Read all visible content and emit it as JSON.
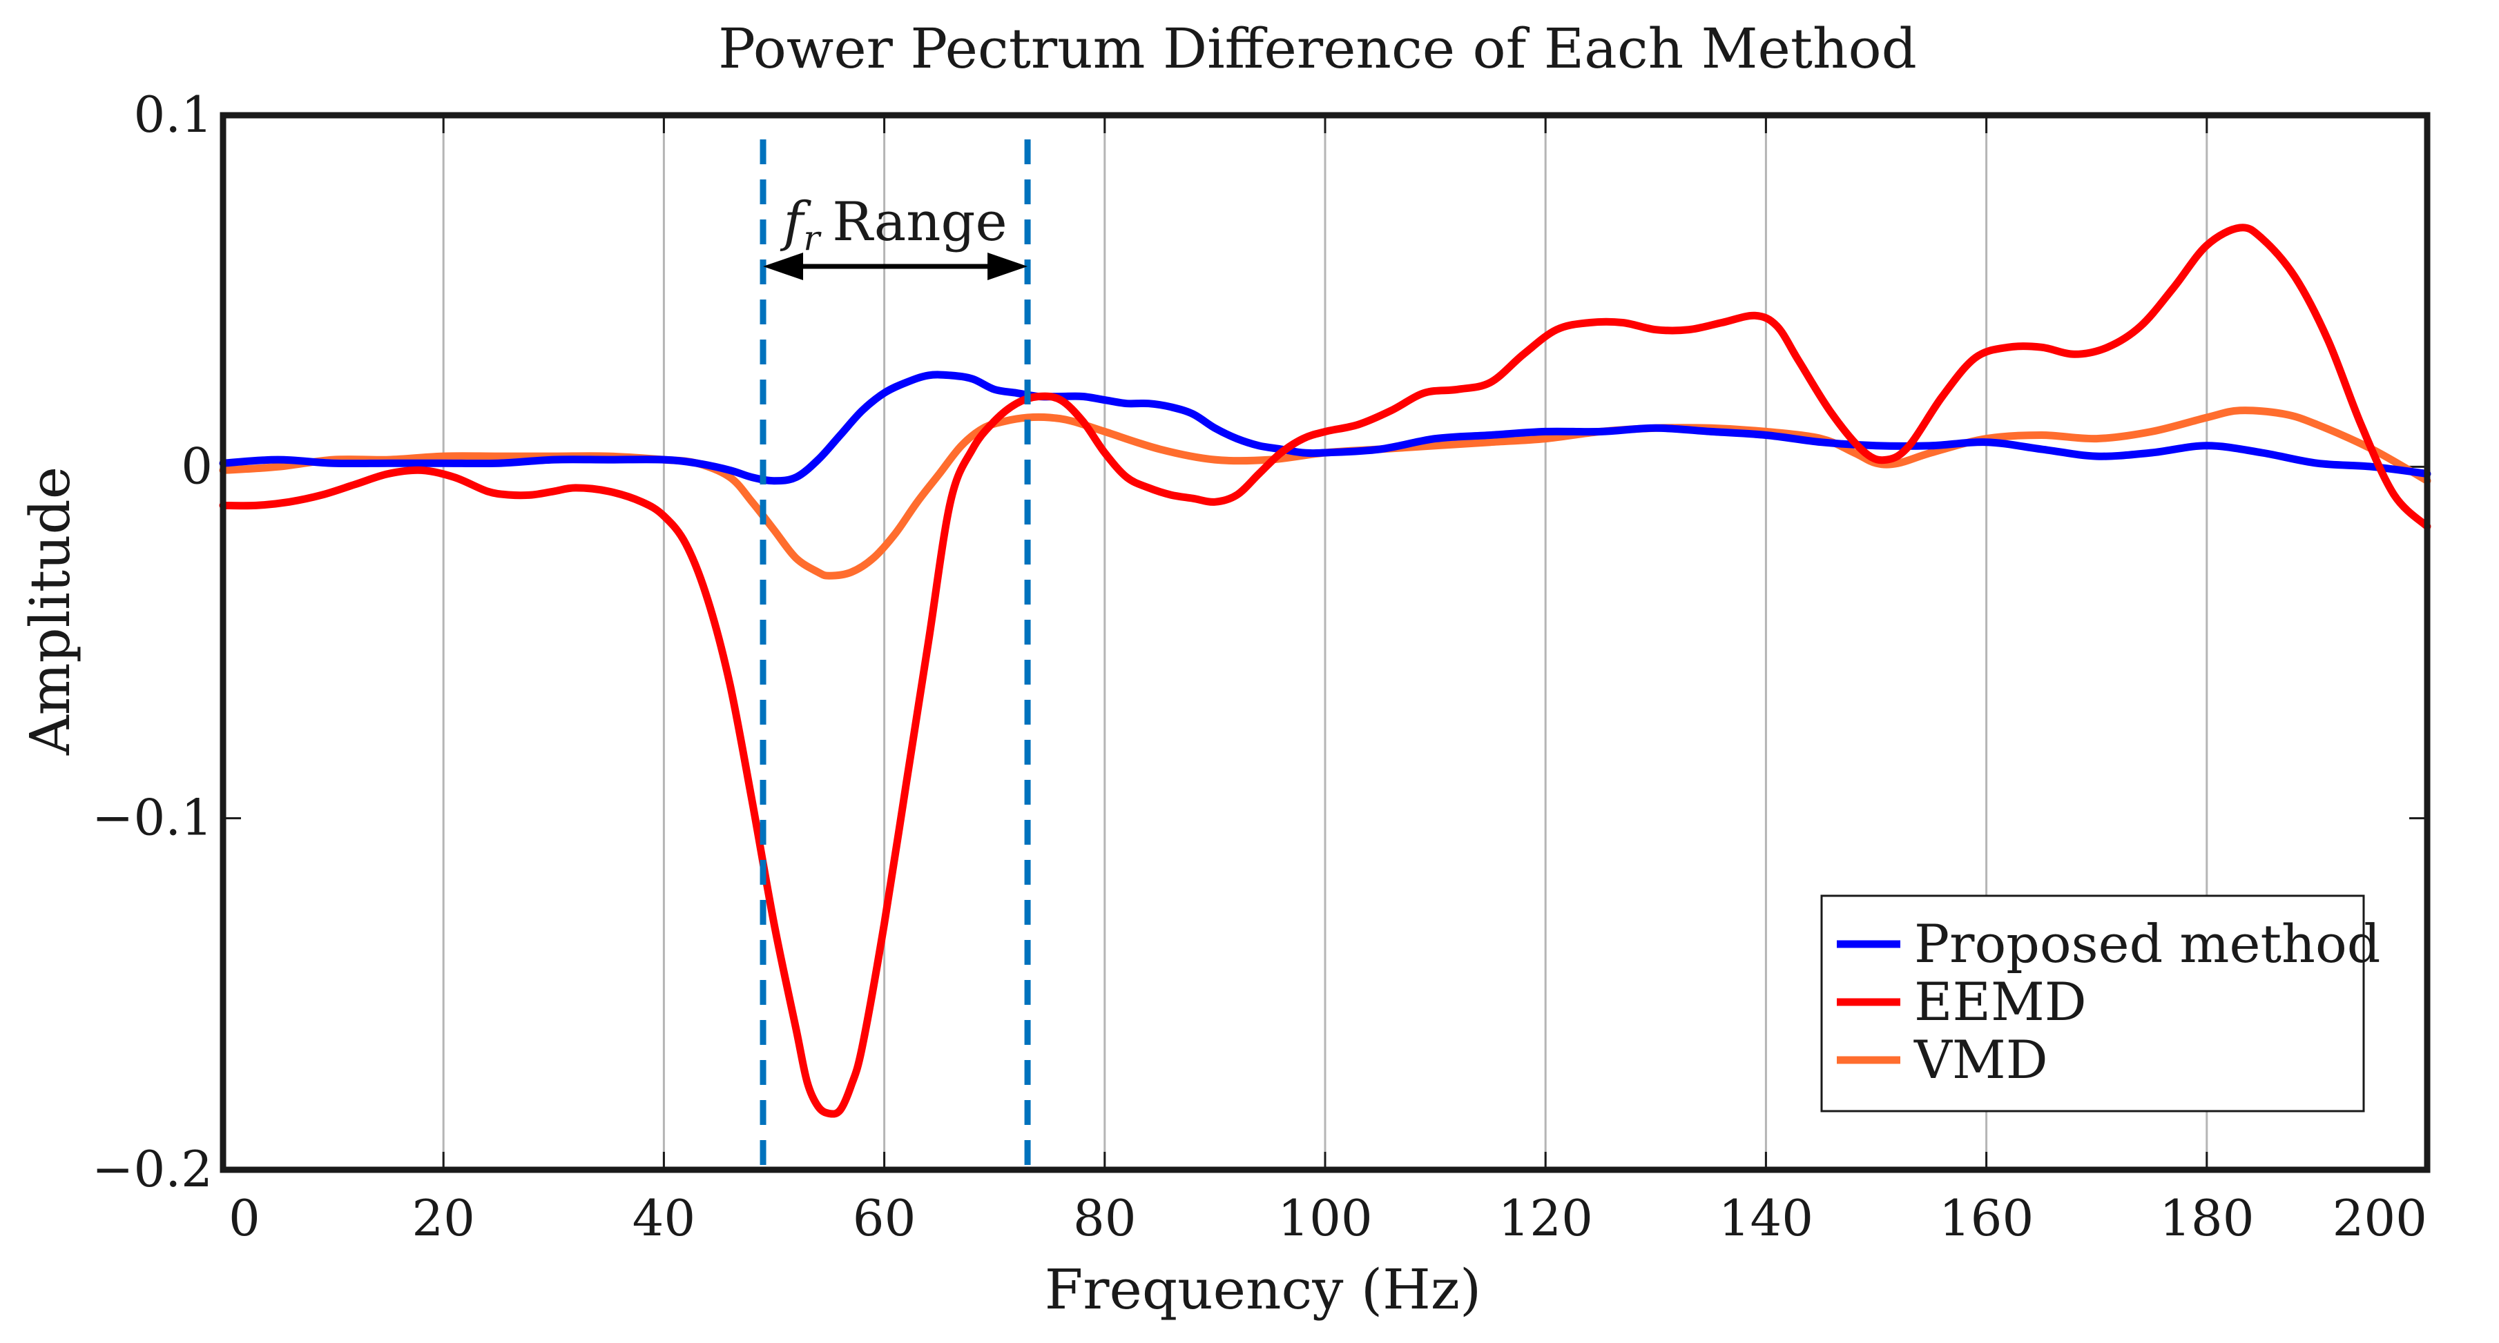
{
  "chart_data": {
    "type": "line",
    "title": "Power Pectrum Difference of Each Method",
    "xlabel": "Frequency (Hz)",
    "ylabel": "Amplitude",
    "xlim": [
      0,
      200
    ],
    "ylim": [
      -0.2,
      0.1
    ],
    "x_ticks": [
      0,
      20,
      40,
      60,
      80,
      100,
      120,
      140,
      160,
      180,
      200
    ],
    "x_tick_labels": [
      "0",
      "20",
      "40",
      "60",
      "80",
      "100",
      "120",
      "140",
      "160",
      "180",
      "200"
    ],
    "y_ticks": [
      -0.2,
      -0.1,
      0,
      0.1
    ],
    "y_tick_labels": [
      "−0.2",
      "−0.1",
      "0",
      "0.1"
    ],
    "grid": "vertical",
    "legend_position": "bottom-right",
    "annotation": {
      "italic": "f",
      "subscript": "r",
      "text": "Range",
      "x_start": 49,
      "x_end": 73,
      "arrow_y": 0.057,
      "color": "#0072BD"
    },
    "series": [
      {
        "name": "Proposed method",
        "color": "#0000FF",
        "x": [
          0,
          5,
          10,
          15,
          20,
          25,
          30,
          35,
          40,
          43,
          46,
          48,
          50,
          52,
          54,
          56,
          58,
          60,
          62,
          64,
          66,
          68,
          70,
          72,
          74,
          76,
          78,
          80,
          82,
          84,
          86,
          88,
          90,
          92,
          94,
          96,
          98,
          100,
          105,
          110,
          115,
          120,
          125,
          130,
          135,
          140,
          145,
          150,
          155,
          160,
          165,
          170,
          175,
          180,
          185,
          190,
          195,
          200
        ],
        "values": [
          0.001,
          0.002,
          0.001,
          0.001,
          0.001,
          0.001,
          0.002,
          0.002,
          0.002,
          0.001,
          -0.001,
          -0.003,
          -0.004,
          -0.003,
          0.002,
          0.009,
          0.016,
          0.021,
          0.024,
          0.026,
          0.026,
          0.025,
          0.022,
          0.021,
          0.02,
          0.02,
          0.02,
          0.019,
          0.018,
          0.018,
          0.017,
          0.015,
          0.011,
          0.008,
          0.006,
          0.005,
          0.004,
          0.004,
          0.005,
          0.008,
          0.009,
          0.01,
          0.01,
          0.011,
          0.01,
          0.009,
          0.007,
          0.006,
          0.006,
          0.007,
          0.005,
          0.003,
          0.004,
          0.006,
          0.004,
          0.001,
          0.0,
          -0.002
        ]
      },
      {
        "name": "EEMD",
        "color": "#FF0000",
        "x": [
          0,
          3,
          6,
          9,
          12,
          15,
          18,
          21,
          24,
          26,
          28,
          30,
          32,
          35,
          38,
          40,
          42,
          44,
          46,
          48,
          50,
          52,
          53,
          54,
          55,
          56,
          57,
          58,
          60,
          62,
          64,
          66,
          68,
          70,
          72,
          74,
          76,
          78,
          80,
          82,
          84,
          86,
          88,
          90,
          92,
          94,
          96,
          98,
          100,
          103,
          106,
          109,
          112,
          115,
          118,
          121,
          124,
          127,
          130,
          133,
          136,
          139,
          141,
          143,
          146,
          149,
          151,
          153,
          156,
          159,
          162,
          165,
          168,
          171,
          174,
          177,
          180,
          183,
          185,
          188,
          191,
          194,
          197,
          200
        ],
        "values": [
          -0.011,
          -0.011,
          -0.01,
          -0.008,
          -0.005,
          -0.002,
          -0.001,
          -0.003,
          -0.007,
          -0.008,
          -0.008,
          -0.007,
          -0.006,
          -0.007,
          -0.01,
          -0.014,
          -0.022,
          -0.038,
          -0.062,
          -0.095,
          -0.13,
          -0.16,
          -0.175,
          -0.182,
          -0.184,
          -0.183,
          -0.176,
          -0.165,
          -0.13,
          -0.09,
          -0.05,
          -0.01,
          0.005,
          0.013,
          0.018,
          0.02,
          0.019,
          0.013,
          0.004,
          -0.003,
          -0.006,
          -0.008,
          -0.009,
          -0.01,
          -0.008,
          -0.002,
          0.004,
          0.008,
          0.01,
          0.012,
          0.016,
          0.021,
          0.022,
          0.024,
          0.032,
          0.039,
          0.041,
          0.041,
          0.039,
          0.039,
          0.041,
          0.043,
          0.04,
          0.03,
          0.015,
          0.004,
          0.002,
          0.006,
          0.02,
          0.031,
          0.034,
          0.034,
          0.032,
          0.034,
          0.04,
          0.051,
          0.063,
          0.068,
          0.065,
          0.054,
          0.036,
          0.012,
          -0.008,
          -0.017
        ]
      },
      {
        "name": "VMD",
        "color": "#FF6D2E",
        "x": [
          0,
          5,
          10,
          15,
          20,
          25,
          30,
          35,
          40,
          43,
          46,
          48,
          50,
          52,
          54,
          55,
          57,
          59,
          61,
          63,
          65,
          67,
          69,
          71,
          73,
          75,
          77,
          80,
          85,
          90,
          95,
          100,
          105,
          110,
          115,
          120,
          125,
          130,
          135,
          140,
          145,
          148,
          150,
          152,
          155,
          160,
          165,
          170,
          175,
          180,
          183,
          187,
          190,
          195,
          200
        ],
        "values": [
          -0.001,
          0.0,
          0.002,
          0.002,
          0.003,
          0.003,
          0.003,
          0.003,
          0.002,
          0.001,
          -0.003,
          -0.01,
          -0.018,
          -0.026,
          -0.03,
          -0.031,
          -0.03,
          -0.026,
          -0.019,
          -0.01,
          -0.002,
          0.006,
          0.011,
          0.013,
          0.014,
          0.014,
          0.013,
          0.01,
          0.005,
          0.002,
          0.002,
          0.004,
          0.005,
          0.006,
          0.007,
          0.008,
          0.01,
          0.011,
          0.011,
          0.01,
          0.008,
          0.004,
          0.001,
          0.001,
          0.004,
          0.008,
          0.009,
          0.008,
          0.01,
          0.014,
          0.016,
          0.015,
          0.012,
          0.005,
          -0.004
        ]
      }
    ]
  }
}
